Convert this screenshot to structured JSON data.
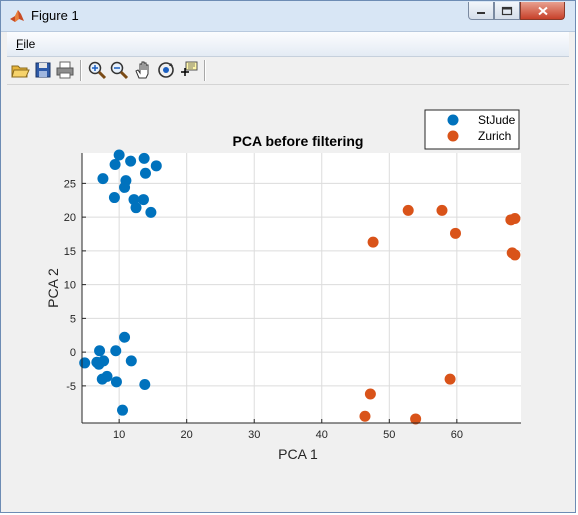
{
  "window": {
    "title": "Figure 1"
  },
  "menu": {
    "file_prefix": "F",
    "file_rest": "ile"
  },
  "toolbar": {
    "icons": [
      "open-icon",
      "save-icon",
      "print-icon",
      "zoom-in-icon",
      "zoom-out-icon",
      "pan-icon",
      "rotate-3d-icon",
      "data-cursor-icon"
    ]
  },
  "chart_data": {
    "type": "scatter",
    "title": "PCA before filtering",
    "xlabel": "PCA 1",
    "ylabel": "PCA 2",
    "xlim": [
      4.5,
      69.5
    ],
    "ylim": [
      -10.5,
      29.5
    ],
    "xticks": [
      10,
      20,
      30,
      40,
      50,
      60
    ],
    "yticks": [
      -5,
      0,
      5,
      10,
      15,
      20,
      25
    ],
    "grid": true,
    "legend_position": "top-right",
    "series": [
      {
        "name": "StJude",
        "color": "#0072bd",
        "points": [
          [
            10.0,
            29.2
          ],
          [
            13.7,
            28.7
          ],
          [
            11.7,
            28.3
          ],
          [
            9.4,
            27.8
          ],
          [
            15.5,
            27.6
          ],
          [
            13.9,
            26.5
          ],
          [
            7.6,
            25.7
          ],
          [
            11.0,
            25.4
          ],
          [
            10.8,
            24.4
          ],
          [
            9.3,
            22.9
          ],
          [
            12.2,
            22.6
          ],
          [
            13.6,
            22.6
          ],
          [
            12.5,
            21.4
          ],
          [
            14.7,
            20.7
          ],
          [
            10.8,
            2.2
          ],
          [
            4.9,
            -1.6
          ],
          [
            6.7,
            -1.5
          ],
          [
            7.1,
            0.2
          ],
          [
            9.5,
            0.2
          ],
          [
            7.7,
            -1.3
          ],
          [
            11.8,
            -1.3
          ],
          [
            7.0,
            -1.8
          ],
          [
            8.2,
            -3.6
          ],
          [
            7.5,
            -4.0
          ],
          [
            9.6,
            -4.4
          ],
          [
            13.8,
            -4.8
          ],
          [
            10.5,
            -8.6
          ]
        ]
      },
      {
        "name": "Zurich",
        "color": "#d95319",
        "points": [
          [
            52.8,
            21.0
          ],
          [
            57.8,
            21.0
          ],
          [
            68.6,
            19.8
          ],
          [
            68.0,
            19.6
          ],
          [
            59.8,
            17.6
          ],
          [
            47.6,
            16.3
          ],
          [
            68.2,
            14.7
          ],
          [
            68.6,
            14.4
          ],
          [
            59.0,
            -4.0
          ],
          [
            47.2,
            -6.2
          ],
          [
            46.4,
            -9.5
          ],
          [
            53.9,
            -9.9
          ]
        ]
      }
    ]
  }
}
